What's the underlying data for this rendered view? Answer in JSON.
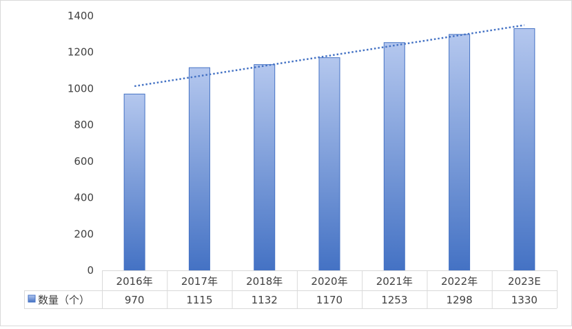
{
  "chart_data": {
    "type": "bar",
    "categories": [
      "2016年",
      "2017年",
      "2018年",
      "2020年",
      "2021年",
      "2022年",
      "2023E"
    ],
    "series": [
      {
        "name": "数量（个）",
        "values": [
          970,
          1115,
          1132,
          1170,
          1253,
          1298,
          1330
        ]
      }
    ],
    "y_ticks": [
      "0",
      "200",
      "400",
      "600",
      "800",
      "1000",
      "1200",
      "1400"
    ],
    "ylim": [
      0,
      1400
    ],
    "trendline": {
      "type": "linear",
      "style": "dotted"
    },
    "legend": "data-table-left",
    "colors": {
      "bar_top": "#b4c7ee",
      "bar_bottom": "#4472c4",
      "bar_border": "#4472c4",
      "trend": "#4472c4",
      "grid": "#d9d9d9"
    }
  }
}
